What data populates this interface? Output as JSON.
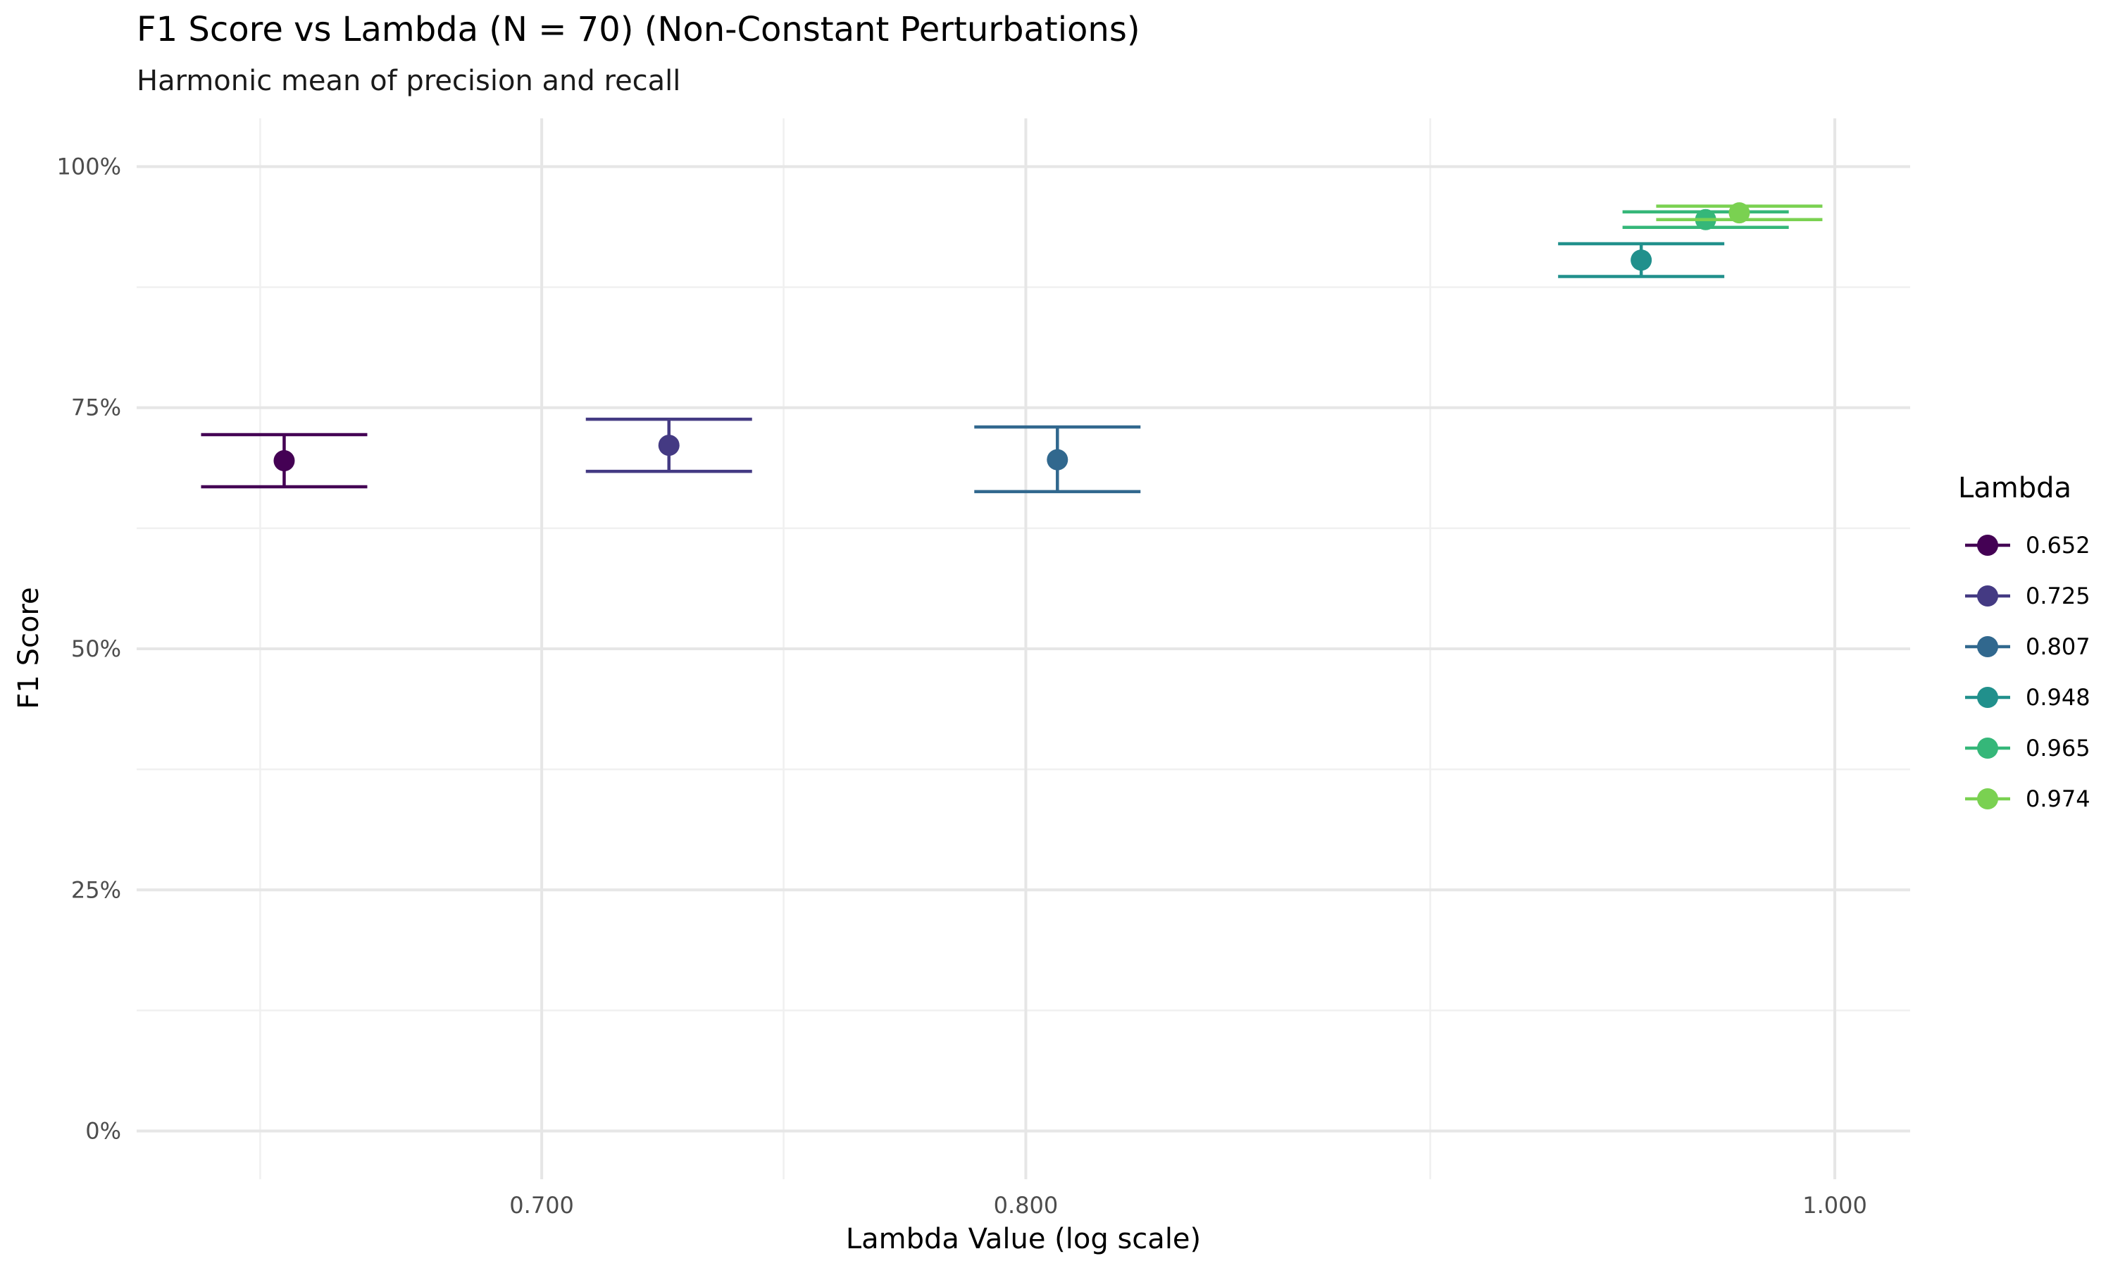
{
  "chart_data": {
    "type": "scatter",
    "title": "F1 Score vs Lambda (N = 70) (Non-Constant Perturbations)",
    "subtitle": "Harmonic mean of precision and recall",
    "xlabel": "Lambda Value (log scale)",
    "ylabel": "F1 Score",
    "x_scale": "log",
    "xlim": [
      0.626,
      1.021
    ],
    "ylim": [
      -0.05,
      1.05
    ],
    "x_ticks": [
      0.7,
      0.8,
      1.0
    ],
    "x_tick_labels": [
      "0.700",
      "0.800",
      "1.000"
    ],
    "x_minor_ticks": [
      0.6477,
      0.7483,
      0.8944
    ],
    "y_ticks": [
      0,
      0.25,
      0.5,
      0.75,
      1.0
    ],
    "y_tick_labels": [
      "0%",
      "25%",
      "50%",
      "75%",
      "100%"
    ],
    "y_minor_ticks": [
      0.125,
      0.375,
      0.625,
      0.875
    ],
    "grid": true,
    "legend": {
      "title": "Lambda",
      "position": "right"
    },
    "series": [
      {
        "name": "0.652",
        "x": 0.652,
        "y": 0.695,
        "ymin": 0.668,
        "ymax": 0.722,
        "color": "#440154"
      },
      {
        "name": "0.725",
        "x": 0.725,
        "y": 0.711,
        "ymin": 0.684,
        "ymax": 0.738,
        "color": "#443A83"
      },
      {
        "name": "0.807",
        "x": 0.807,
        "y": 0.696,
        "ymin": 0.663,
        "ymax": 0.73,
        "color": "#31688E"
      },
      {
        "name": "0.948",
        "x": 0.948,
        "y": 0.903,
        "ymin": 0.886,
        "ymax": 0.92,
        "color": "#21908C"
      },
      {
        "name": "0.965",
        "x": 0.965,
        "y": 0.945,
        "ymin": 0.937,
        "ymax": 0.953,
        "color": "#35B779"
      },
      {
        "name": "0.974",
        "x": 0.974,
        "y": 0.952,
        "ymin": 0.945,
        "ymax": 0.959,
        "color": "#7AD151"
      }
    ]
  }
}
